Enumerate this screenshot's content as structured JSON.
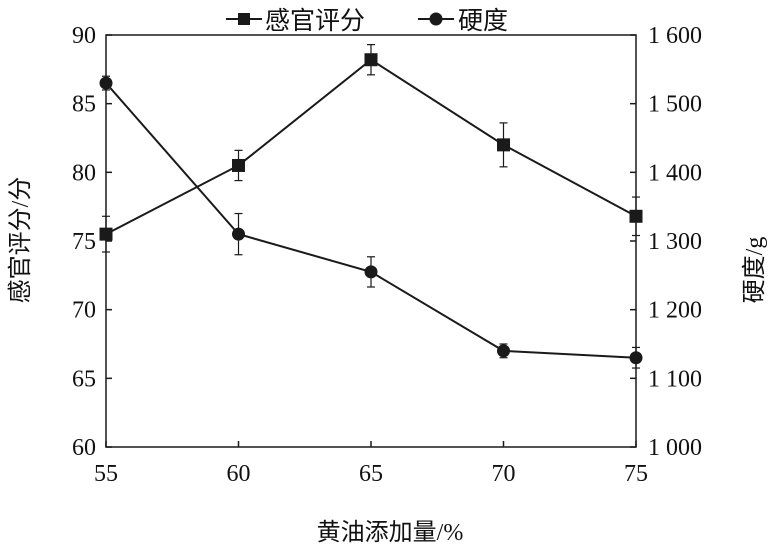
{
  "chart_data": {
    "type": "line",
    "x": [
      55,
      60,
      65,
      70,
      75
    ],
    "xlabel": "黄油添加量/%",
    "ylabel_left": "感官评分/分",
    "ylabel_right": "硬度/g",
    "xlim": [
      55,
      75
    ],
    "ylim_left": [
      60,
      90
    ],
    "ylim_right": [
      1000,
      1600
    ],
    "x_ticks": [
      "55",
      "60",
      "65",
      "70",
      "75"
    ],
    "y_ticks_left": [
      "60",
      "65",
      "70",
      "75",
      "80",
      "85",
      "90"
    ],
    "y_ticks_right": [
      "1 000",
      "1 100",
      "1 200",
      "1 300",
      "1 400",
      "1 500",
      "1 600"
    ],
    "grid": false,
    "legend_position": "top",
    "series": [
      {
        "name": "感官评分",
        "axis": "left",
        "marker": "square",
        "values": [
          75.5,
          80.5,
          88.2,
          82.0,
          76.8
        ],
        "errors": [
          1.3,
          1.1,
          1.1,
          1.6,
          1.4
        ]
      },
      {
        "name": "硬度",
        "axis": "right",
        "marker": "circle",
        "values": [
          1530,
          1310,
          1255,
          1140,
          1130
        ],
        "errors": [
          10,
          30,
          22,
          10,
          15
        ]
      }
    ],
    "color": "#1a1a1a"
  }
}
